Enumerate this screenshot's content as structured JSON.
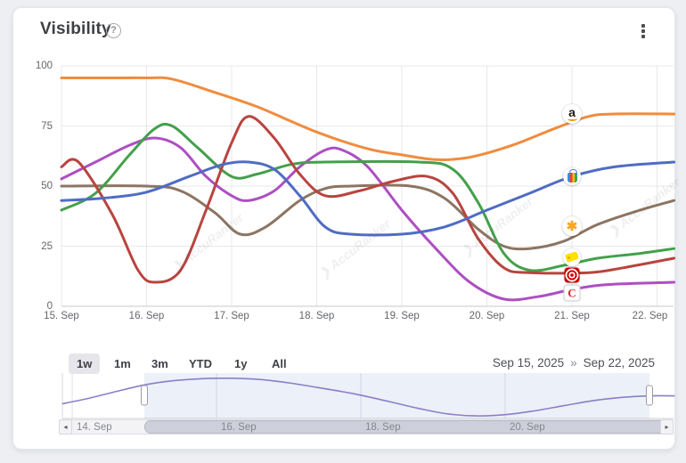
{
  "card": {
    "title": "Visibility",
    "help_label": "?",
    "watermark": "AccuRanker"
  },
  "chart_data": {
    "type": "line",
    "title": "Visibility",
    "xlabel": "",
    "ylabel": "",
    "ylim": [
      0,
      100
    ],
    "y_ticks": [
      100,
      75,
      50,
      25,
      0
    ],
    "x_tick_labels": [
      "15. Sep",
      "16. Sep",
      "17. Sep",
      "18. Sep",
      "19. Sep",
      "20. Sep",
      "21. Sep",
      "22. Sep"
    ],
    "x_tick_days": [
      15,
      16,
      17,
      18,
      19,
      20,
      21,
      22
    ],
    "grid": true,
    "legend": "logo-markers-at-line-end",
    "series": [
      {
        "name": "Walmart",
        "color": "#8c7562",
        "icon": "walmart-spark-icon",
        "marker_day": 21,
        "marker_value": 33.5,
        "points": [
          [
            15,
            50
          ],
          [
            16,
            50
          ],
          [
            16.4,
            48
          ],
          [
            16.8,
            39
          ],
          [
            17.1,
            30
          ],
          [
            17.4,
            33
          ],
          [
            17.8,
            44
          ],
          [
            18.1,
            49
          ],
          [
            18.4,
            50
          ],
          [
            19.1,
            50
          ],
          [
            19.5,
            45
          ],
          [
            19.9,
            32
          ],
          [
            20.2,
            25
          ],
          [
            20.5,
            24
          ],
          [
            20.9,
            27
          ],
          [
            21.3,
            34
          ],
          [
            21.8,
            40
          ],
          [
            22.2,
            44
          ]
        ]
      },
      {
        "name": "Costco",
        "color": "#ad4fc2",
        "icon": "costco-logo-icon",
        "marker_day": 21,
        "marker_value": 5.5,
        "points": [
          [
            15,
            53
          ],
          [
            15.4,
            60
          ],
          [
            15.8,
            67
          ],
          [
            16.1,
            70
          ],
          [
            16.4,
            66
          ],
          [
            16.7,
            54
          ],
          [
            17,
            46
          ],
          [
            17.2,
            44
          ],
          [
            17.5,
            48
          ],
          [
            17.8,
            58
          ],
          [
            18.1,
            65
          ],
          [
            18.3,
            65
          ],
          [
            18.6,
            58
          ],
          [
            19,
            40
          ],
          [
            19.4,
            24
          ],
          [
            19.8,
            10
          ],
          [
            20.2,
            3
          ],
          [
            20.6,
            4
          ],
          [
            21,
            7
          ],
          [
            21.4,
            9
          ],
          [
            22.2,
            10
          ]
        ]
      },
      {
        "name": "Best Buy",
        "color": "#43a04b",
        "icon": "bestbuy-tag-icon",
        "marker_day": 21,
        "marker_value": 20.5,
        "points": [
          [
            15,
            40
          ],
          [
            15.4,
            47
          ],
          [
            15.8,
            63
          ],
          [
            16.1,
            74
          ],
          [
            16.3,
            75
          ],
          [
            16.6,
            66
          ],
          [
            17,
            54
          ],
          [
            17.3,
            55
          ],
          [
            17.7,
            59
          ],
          [
            18.1,
            60
          ],
          [
            19.2,
            60
          ],
          [
            19.6,
            57
          ],
          [
            19.9,
            43
          ],
          [
            20.2,
            22
          ],
          [
            20.5,
            15
          ],
          [
            20.9,
            17
          ],
          [
            21.3,
            20
          ],
          [
            21.8,
            22
          ],
          [
            22.2,
            24
          ]
        ]
      },
      {
        "name": "Target",
        "color": "#b8443f",
        "icon": "target-logo-icon",
        "marker_day": 21,
        "marker_value": 13,
        "points": [
          [
            15,
            58
          ],
          [
            15.2,
            60
          ],
          [
            15.6,
            38
          ],
          [
            15.9,
            15
          ],
          [
            16.1,
            10
          ],
          [
            16.4,
            15
          ],
          [
            16.7,
            40
          ],
          [
            17,
            68
          ],
          [
            17.2,
            79
          ],
          [
            17.5,
            70
          ],
          [
            17.8,
            55
          ],
          [
            18.1,
            46
          ],
          [
            18.5,
            48
          ],
          [
            18.9,
            52
          ],
          [
            19.3,
            54
          ],
          [
            19.6,
            47
          ],
          [
            19.9,
            28
          ],
          [
            20.2,
            16
          ],
          [
            20.5,
            14
          ],
          [
            21.2,
            14
          ],
          [
            21.6,
            16
          ],
          [
            22.2,
            20
          ]
        ]
      },
      {
        "name": "Google Shopping",
        "color": "#4f6cc4",
        "icon": "google-shopping-bag-icon",
        "marker_day": 21,
        "marker_value": 54,
        "points": [
          [
            15,
            44
          ],
          [
            15.5,
            45
          ],
          [
            16,
            47.5
          ],
          [
            16.5,
            54
          ],
          [
            16.9,
            59
          ],
          [
            17.2,
            60
          ],
          [
            17.5,
            57
          ],
          [
            17.8,
            46
          ],
          [
            18.1,
            33
          ],
          [
            18.4,
            30
          ],
          [
            19,
            30
          ],
          [
            19.5,
            33
          ],
          [
            20,
            40
          ],
          [
            20.5,
            47
          ],
          [
            21,
            54
          ],
          [
            21.5,
            58
          ],
          [
            22.2,
            60
          ]
        ]
      },
      {
        "name": "Amazon",
        "color": "#f08c3e",
        "icon": "amazon-logo-icon",
        "marker_day": 21,
        "marker_value": 80,
        "points": [
          [
            15,
            95
          ],
          [
            15.6,
            95
          ],
          [
            16,
            95
          ],
          [
            16.3,
            94.5
          ],
          [
            16.8,
            89
          ],
          [
            17.3,
            83
          ],
          [
            18,
            72.5
          ],
          [
            18.6,
            65.5
          ],
          [
            19,
            63
          ],
          [
            19.4,
            61
          ],
          [
            19.8,
            62
          ],
          [
            20.3,
            67
          ],
          [
            20.8,
            74
          ],
          [
            21.2,
            79
          ],
          [
            21.5,
            80
          ],
          [
            22.2,
            80
          ]
        ]
      }
    ]
  },
  "range_selector": {
    "buttons": [
      {
        "label": "1w",
        "active": true
      },
      {
        "label": "1m",
        "active": false
      },
      {
        "label": "3m",
        "active": false
      },
      {
        "label": "YTD",
        "active": false
      },
      {
        "label": "1y",
        "active": false
      },
      {
        "label": "All",
        "active": false
      }
    ],
    "from": "Sep 15, 2025",
    "separator": "»",
    "to": "Sep 22, 2025"
  },
  "navigator": {
    "line_color": "#8b7ec8",
    "x_tick_labels": [
      "14. Sep",
      "16. Sep",
      "18. Sep",
      "20. Sep"
    ],
    "x_tick_days": [
      14,
      16,
      18,
      20
    ],
    "selected_from_day": 15,
    "selected_to_day": 22,
    "points": [
      [
        13.86,
        33
      ],
      [
        14.2,
        45
      ],
      [
        14.6,
        62
      ],
      [
        15,
        78
      ],
      [
        15.4,
        88
      ],
      [
        15.8,
        93
      ],
      [
        16.2,
        94
      ],
      [
        16.6,
        91
      ],
      [
        17,
        83
      ],
      [
        17.4,
        72
      ],
      [
        17.9,
        57
      ],
      [
        18.4,
        38
      ],
      [
        18.8,
        22
      ],
      [
        19.2,
        9
      ],
      [
        19.6,
        4
      ],
      [
        20,
        7
      ],
      [
        20.4,
        16
      ],
      [
        20.8,
        28
      ],
      [
        21.2,
        40
      ],
      [
        21.6,
        48
      ],
      [
        22,
        52
      ],
      [
        22.35,
        52
      ]
    ]
  },
  "scrollbar": {
    "left_arrow": "◂",
    "right_arrow": "▸"
  }
}
